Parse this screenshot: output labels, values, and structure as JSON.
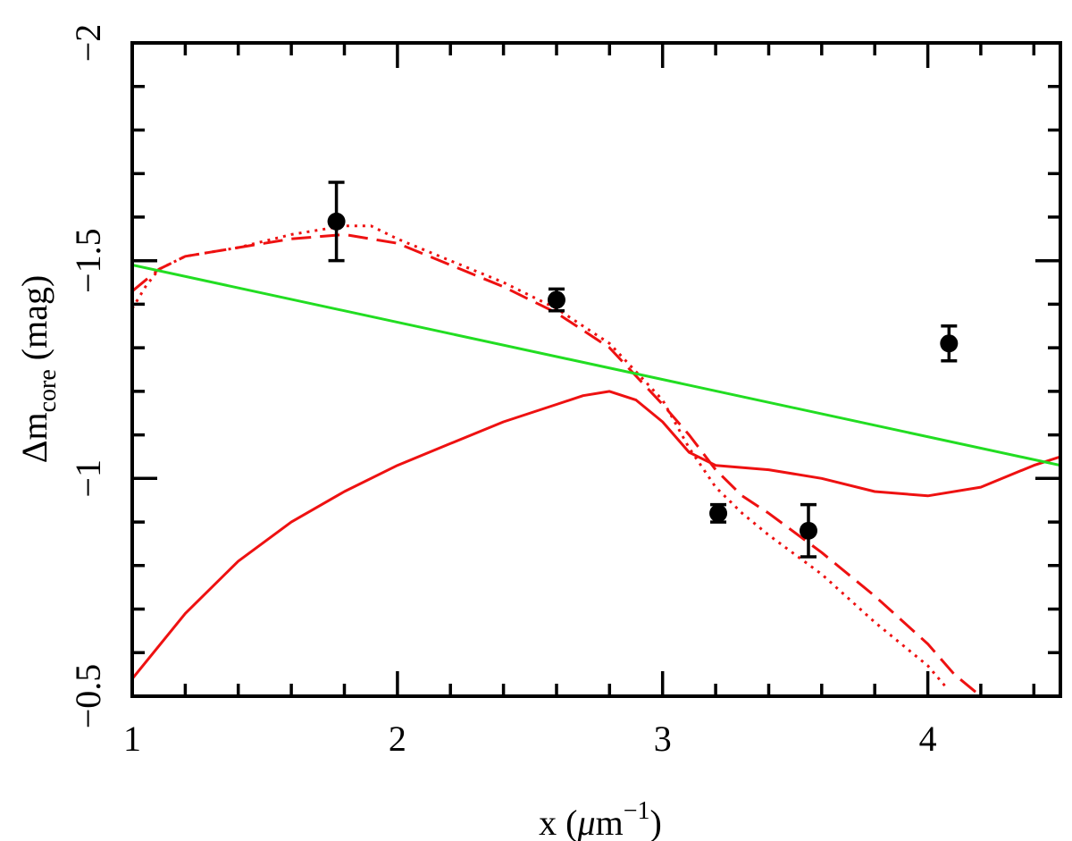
{
  "chart_data": {
    "type": "line",
    "title": "",
    "xlabel": "x (μm⁻¹)",
    "xlabel_parts": {
      "main": "x (",
      "mu": "μ",
      "m": "m",
      "exp": "−1",
      "close": ")"
    },
    "ylabel_parts": {
      "main": "Δm",
      "sub": "core",
      "unit": " (mag)"
    },
    "xlim": [
      1,
      4.5
    ],
    "ylim": [
      -0.5,
      -2
    ],
    "y_inverted": true,
    "x_ticks": [
      1,
      2,
      3,
      4
    ],
    "x_tick_labels": [
      "1",
      "2",
      "3",
      "4"
    ],
    "y_ticks": [
      -0.5,
      -1,
      -1.5,
      -2
    ],
    "y_tick_labels": [
      "−0.5",
      "−1",
      "−1.5",
      "−2"
    ],
    "grid": false,
    "points": {
      "name": "observed",
      "x": [
        1.77,
        2.6,
        3.21,
        3.55,
        4.08
      ],
      "y": [
        -1.59,
        -1.41,
        -0.92,
        -0.88,
        -1.31
      ],
      "yerr": [
        0.09,
        0.025,
        0.02,
        0.06,
        0.04
      ]
    },
    "series": [
      {
        "name": "solid red",
        "style": "solid",
        "color": "#ee1111",
        "x": [
          1.0,
          1.2,
          1.4,
          1.6,
          1.8,
          2.0,
          2.2,
          2.4,
          2.6,
          2.7,
          2.8,
          2.9,
          3.0,
          3.1,
          3.2,
          3.4,
          3.6,
          3.8,
          4.0,
          4.2,
          4.4,
          4.5
        ],
        "y": [
          -0.54,
          -0.69,
          -0.81,
          -0.9,
          -0.97,
          -1.03,
          -1.08,
          -1.13,
          -1.17,
          -1.19,
          -1.2,
          -1.18,
          -1.13,
          -1.06,
          -1.03,
          -1.02,
          -1.0,
          -0.97,
          -0.96,
          -0.98,
          -1.03,
          -1.05
        ]
      },
      {
        "name": "dashed red",
        "style": "dashed",
        "color": "#ee1111",
        "x": [
          1.0,
          1.1,
          1.2,
          1.4,
          1.6,
          1.8,
          2.0,
          2.2,
          2.4,
          2.6,
          2.8,
          3.0,
          3.1,
          3.2,
          3.3,
          3.4,
          3.6,
          3.8,
          4.0,
          4.1,
          4.2
        ],
        "y": [
          -1.43,
          -1.48,
          -1.51,
          -1.53,
          -1.55,
          -1.56,
          -1.54,
          -1.49,
          -1.44,
          -1.38,
          -1.3,
          -1.17,
          -1.1,
          -1.02,
          -0.96,
          -0.92,
          -0.83,
          -0.73,
          -0.62,
          -0.55,
          -0.5
        ]
      },
      {
        "name": "dotted red",
        "style": "dotted",
        "color": "#ee1111",
        "x": [
          1.0,
          1.05,
          1.1,
          1.2,
          1.4,
          1.6,
          1.8,
          1.9,
          2.0,
          2.2,
          2.4,
          2.6,
          2.8,
          3.0,
          3.1,
          3.2,
          3.3,
          3.4,
          3.6,
          3.8,
          4.0,
          4.07
        ],
        "y": [
          -1.39,
          -1.44,
          -1.48,
          -1.51,
          -1.53,
          -1.56,
          -1.58,
          -1.58,
          -1.55,
          -1.5,
          -1.45,
          -1.39,
          -1.31,
          -1.18,
          -1.07,
          -0.98,
          -0.92,
          -0.87,
          -0.78,
          -0.67,
          -0.57,
          -0.52
        ]
      },
      {
        "name": "green line",
        "style": "solid",
        "color": "#22dd22",
        "x": [
          1.0,
          4.5
        ],
        "y": [
          -1.49,
          -1.03
        ]
      }
    ]
  }
}
